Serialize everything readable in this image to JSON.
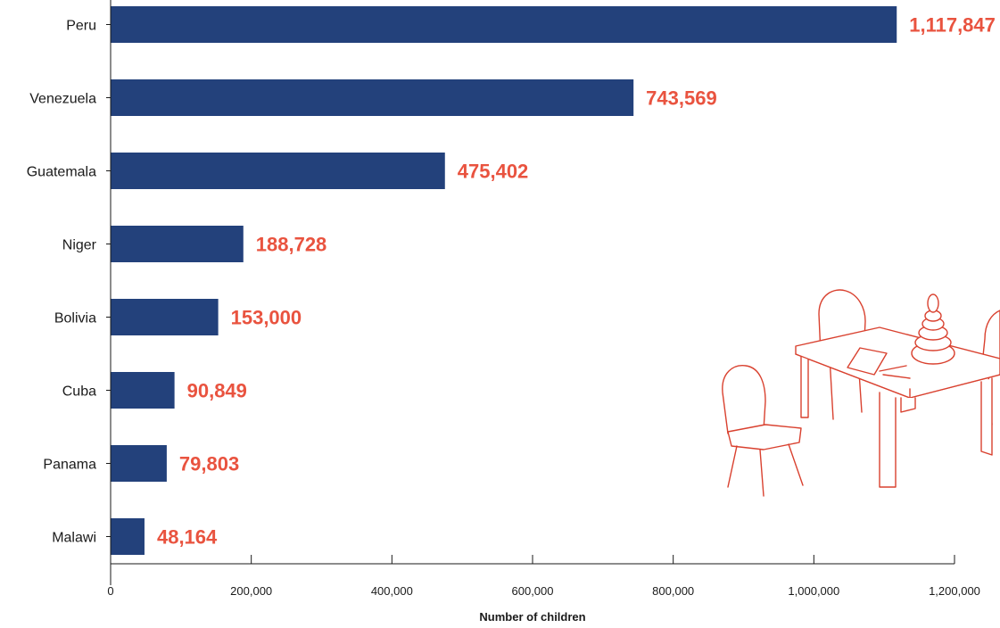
{
  "chart_data": {
    "type": "bar",
    "orientation": "horizontal",
    "categories": [
      "Peru",
      "Venezuela",
      "Guatemala",
      "Niger",
      "Bolivia",
      "Cuba",
      "Panama",
      "Malawi"
    ],
    "values": [
      1117847,
      743569,
      475402,
      188728,
      153000,
      90849,
      79803,
      48164
    ],
    "value_labels": [
      "1,117,847",
      "743,569",
      "475,402",
      "188,728",
      "153,000",
      "90,849",
      "79,803",
      "48,164"
    ],
    "xlabel": "Number of children",
    "xlim": [
      0,
      1200000
    ],
    "xticks": [
      0,
      200000,
      400000,
      600000,
      800000,
      1000000,
      1200000
    ],
    "xtick_labels": [
      "0",
      "200,000",
      "400,000",
      "600,000",
      "800,000",
      "1,000,000",
      "1,200,000"
    ],
    "grid": false,
    "colors": {
      "bar": "#23417b",
      "value_label": "#e9533f",
      "illustration": "#d9412f"
    }
  }
}
